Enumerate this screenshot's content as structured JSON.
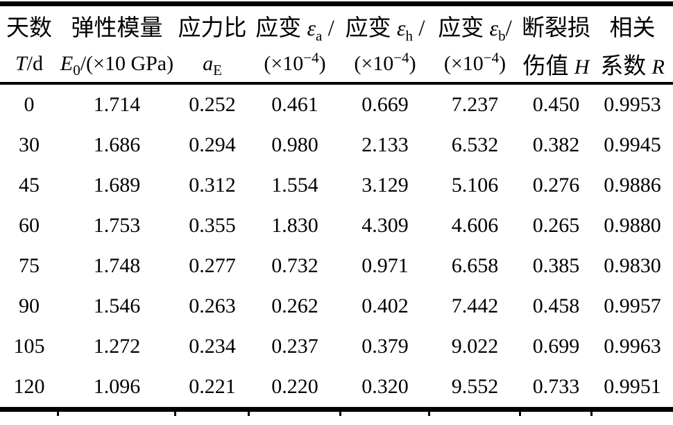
{
  "page": {
    "background": "#ffffff",
    "ink": "#000000"
  },
  "header": {
    "days": {
      "top": "天数",
      "symbol": "T",
      "unit": "/d"
    },
    "modulus": {
      "top": "弹性模量",
      "symbol": "E",
      "sub": "0",
      "unit": "/(×10 GPa)"
    },
    "stress_ratio": {
      "top": "应力比",
      "symbol": "a",
      "sub": "E"
    },
    "strain_a": {
      "label": "应变 ",
      "symbol": "ε",
      "sub": "a",
      "slash": " /",
      "unit_pre": "(×10",
      "unit_sup": "−4",
      "unit_post": ")"
    },
    "strain_h": {
      "label": "应变 ",
      "symbol": "ε",
      "sub": "h",
      "slash": " /",
      "unit_pre": "(×10",
      "unit_sup": "−4",
      "unit_post": ")"
    },
    "strain_b": {
      "label": "应变 ",
      "symbol": "ε",
      "sub": "b",
      "slash": "/",
      "unit_pre": "(×10",
      "unit_sup": "−4",
      "unit_post": ")"
    },
    "damage": {
      "top": "断裂损",
      "bottom": "伤值 ",
      "symbol": "H"
    },
    "correlation": {
      "top": "相关",
      "bottom": "系数 ",
      "symbol": "R"
    }
  },
  "table": {
    "rows": [
      [
        "0",
        "1.714",
        "0.252",
        "0.461",
        "0.669",
        "7.237",
        "0.450",
        "0.9953"
      ],
      [
        "30",
        "1.686",
        "0.294",
        "0.980",
        "2.133",
        "6.532",
        "0.382",
        "0.9945"
      ],
      [
        "45",
        "1.689",
        "0.312",
        "1.554",
        "3.129",
        "5.106",
        "0.276",
        "0.9886"
      ],
      [
        "60",
        "1.753",
        "0.355",
        "1.830",
        "4.309",
        "4.606",
        "0.265",
        "0.9880"
      ],
      [
        "75",
        "1.748",
        "0.277",
        "0.732",
        "0.971",
        "6.658",
        "0.385",
        "0.9830"
      ],
      [
        "90",
        "1.546",
        "0.263",
        "0.262",
        "0.402",
        "7.442",
        "0.458",
        "0.9957"
      ],
      [
        "105",
        "1.272",
        "0.234",
        "0.237",
        "0.379",
        "9.022",
        "0.699",
        "0.9963"
      ],
      [
        "120",
        "1.096",
        "0.221",
        "0.220",
        "0.320",
        "9.552",
        "0.733",
        "0.9951"
      ]
    ]
  }
}
